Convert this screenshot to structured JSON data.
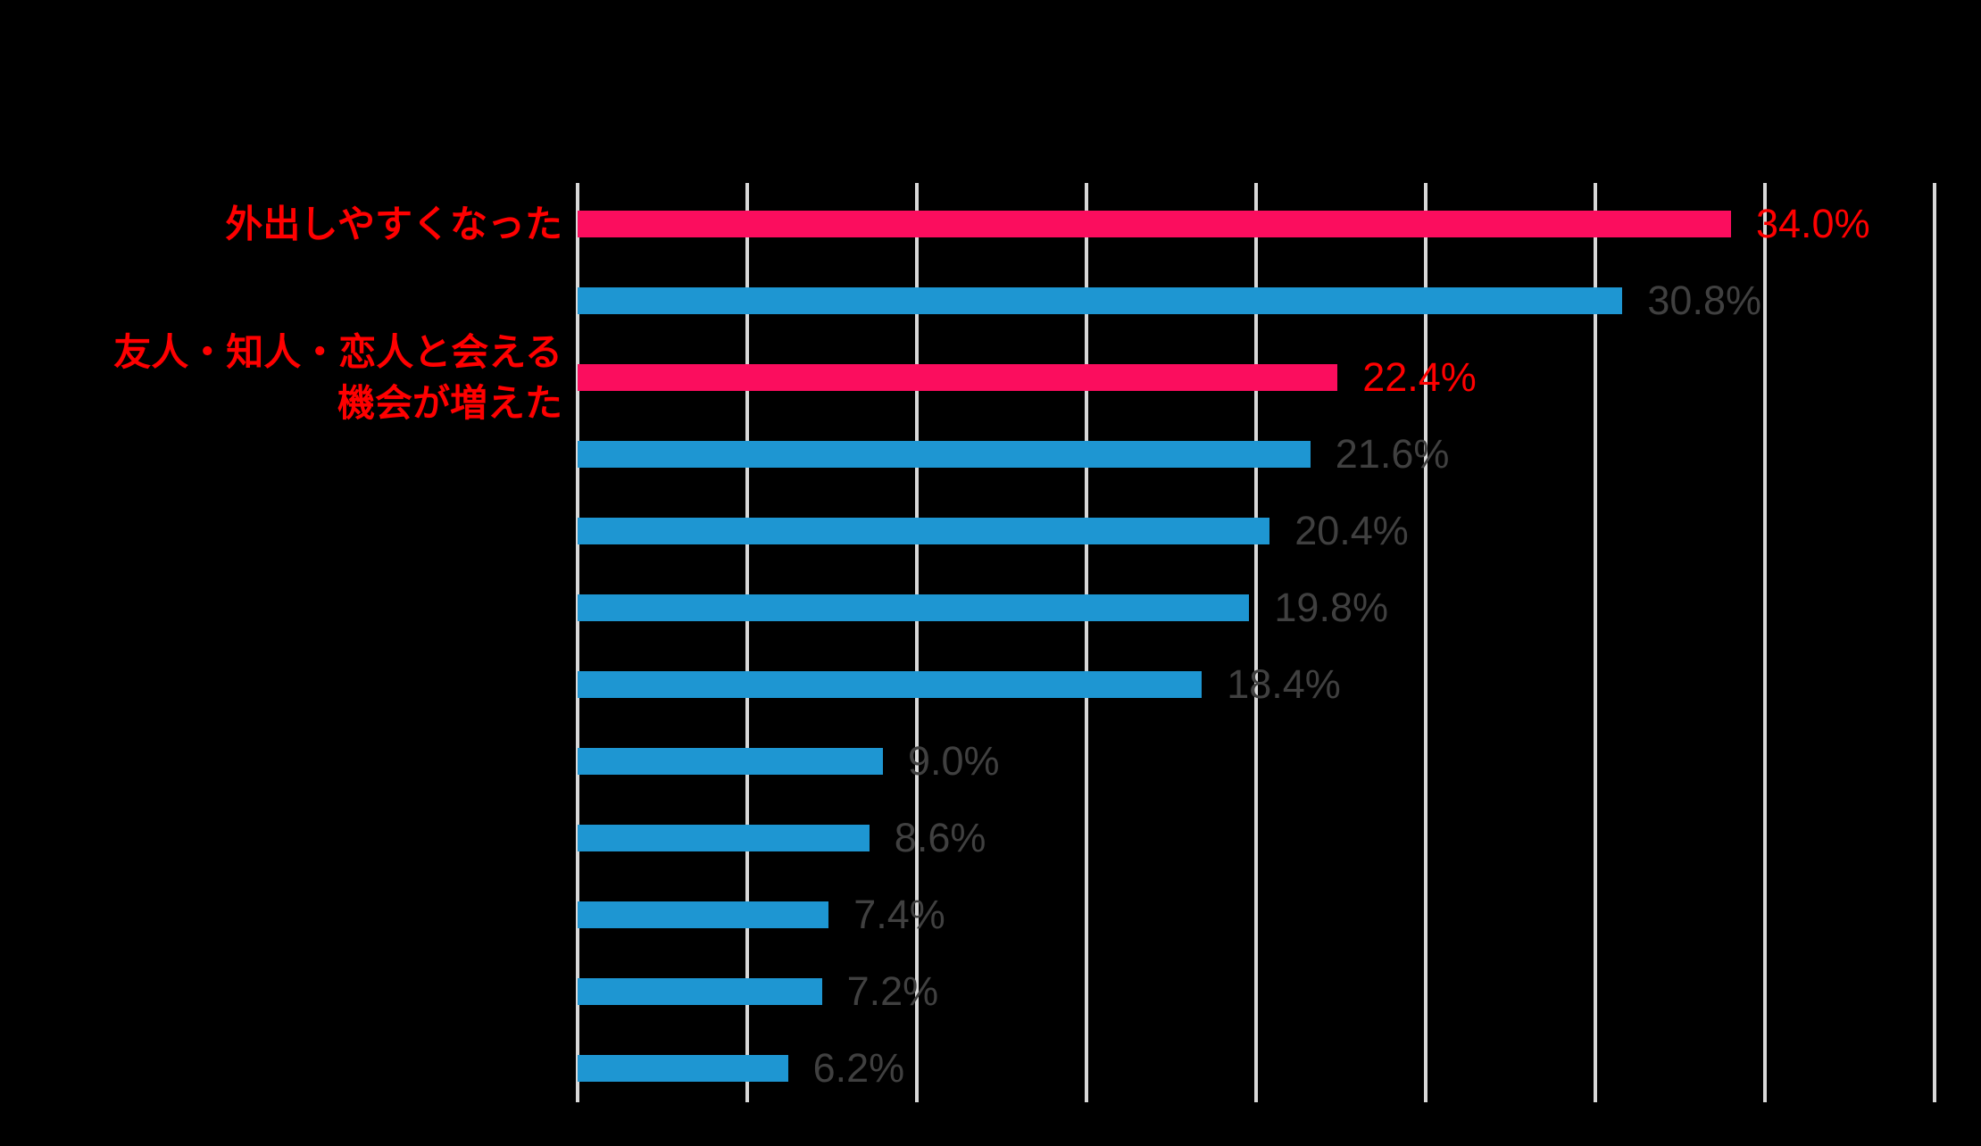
{
  "chart_data": {
    "type": "bar",
    "orientation": "horizontal",
    "title": "",
    "categories": [
      "外出しやすくなった",
      "",
      "友人・知人・恋人と会える\n機会が増えた",
      "",
      "",
      "",
      "",
      "",
      "",
      "",
      "",
      ""
    ],
    "values": [
      34.0,
      30.8,
      22.4,
      21.6,
      20.4,
      19.8,
      18.4,
      9.0,
      8.6,
      7.4,
      7.2,
      6.2
    ],
    "value_labels": [
      "34.0%",
      "30.8%",
      "22.4%",
      "21.6%",
      "20.4%",
      "19.8%",
      "18.4%",
      "9.0%",
      "8.6%",
      "7.4%",
      "7.2%",
      "6.2%"
    ],
    "highlighted_rows": [
      0,
      2
    ],
    "xlim": [
      0,
      40
    ],
    "gridline_step": 5,
    "grid": true,
    "legend": false,
    "colors": {
      "bar": "#1E96D2",
      "bar_highlight": "#FB0D5E",
      "gridline": "#D8D8D8",
      "value_text": "#404040",
      "highlight_text": "#FF0000",
      "background": "#000000"
    }
  }
}
